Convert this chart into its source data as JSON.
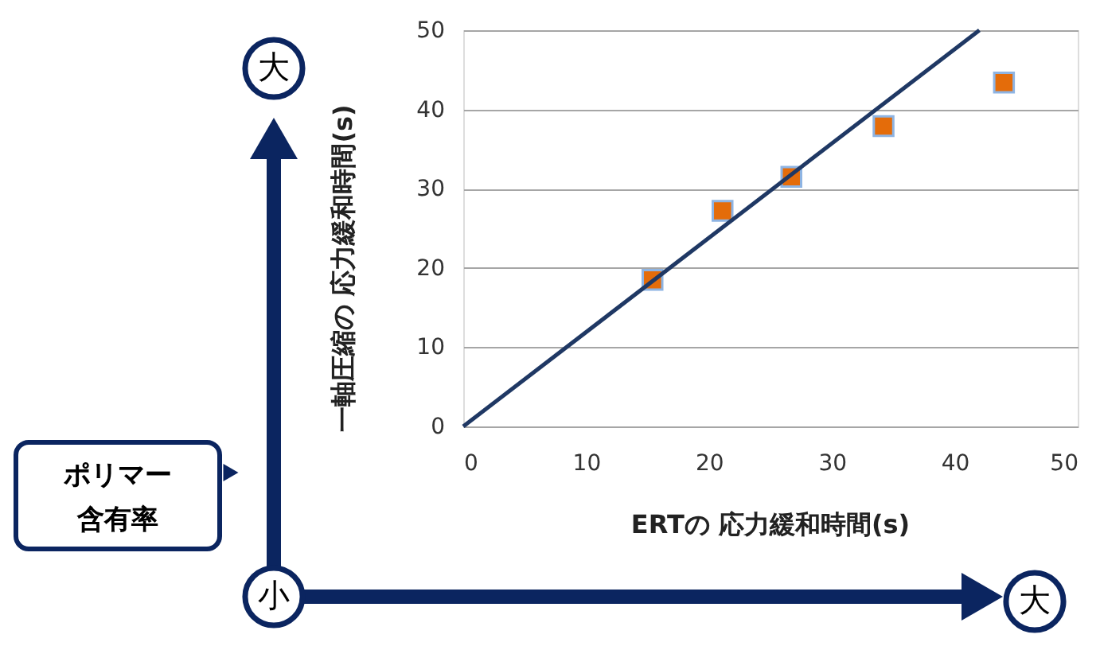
{
  "chart_data": {
    "type": "scatter",
    "xlabel": "ERTの 応力緩和時間(s)",
    "ylabel": "一軸圧縮の 応力緩和時間(s)",
    "xlim": [
      0,
      50
    ],
    "xticks": [
      0,
      10,
      20,
      30,
      40,
      50
    ],
    "ylim": [
      0,
      50
    ],
    "yticks": [
      0,
      10,
      20,
      30,
      40,
      50
    ],
    "grid": "y",
    "marker": "square",
    "series": [
      {
        "color": "#e46c0a",
        "x": [
          15.4,
          21.1,
          26.7,
          34.2,
          44.0
        ],
        "values": [
          18.5,
          27.2,
          31.5,
          37.9,
          43.4
        ]
      },
      {
        "type": "line",
        "color": "#1f3864",
        "x": [
          0,
          42
        ],
        "values": [
          0,
          50
        ],
        "line_style": "solid",
        "marker": "none"
      }
    ],
    "annotations": [
      "大",
      "小",
      "大",
      "ポリマー",
      "含有率"
    ]
  }
}
